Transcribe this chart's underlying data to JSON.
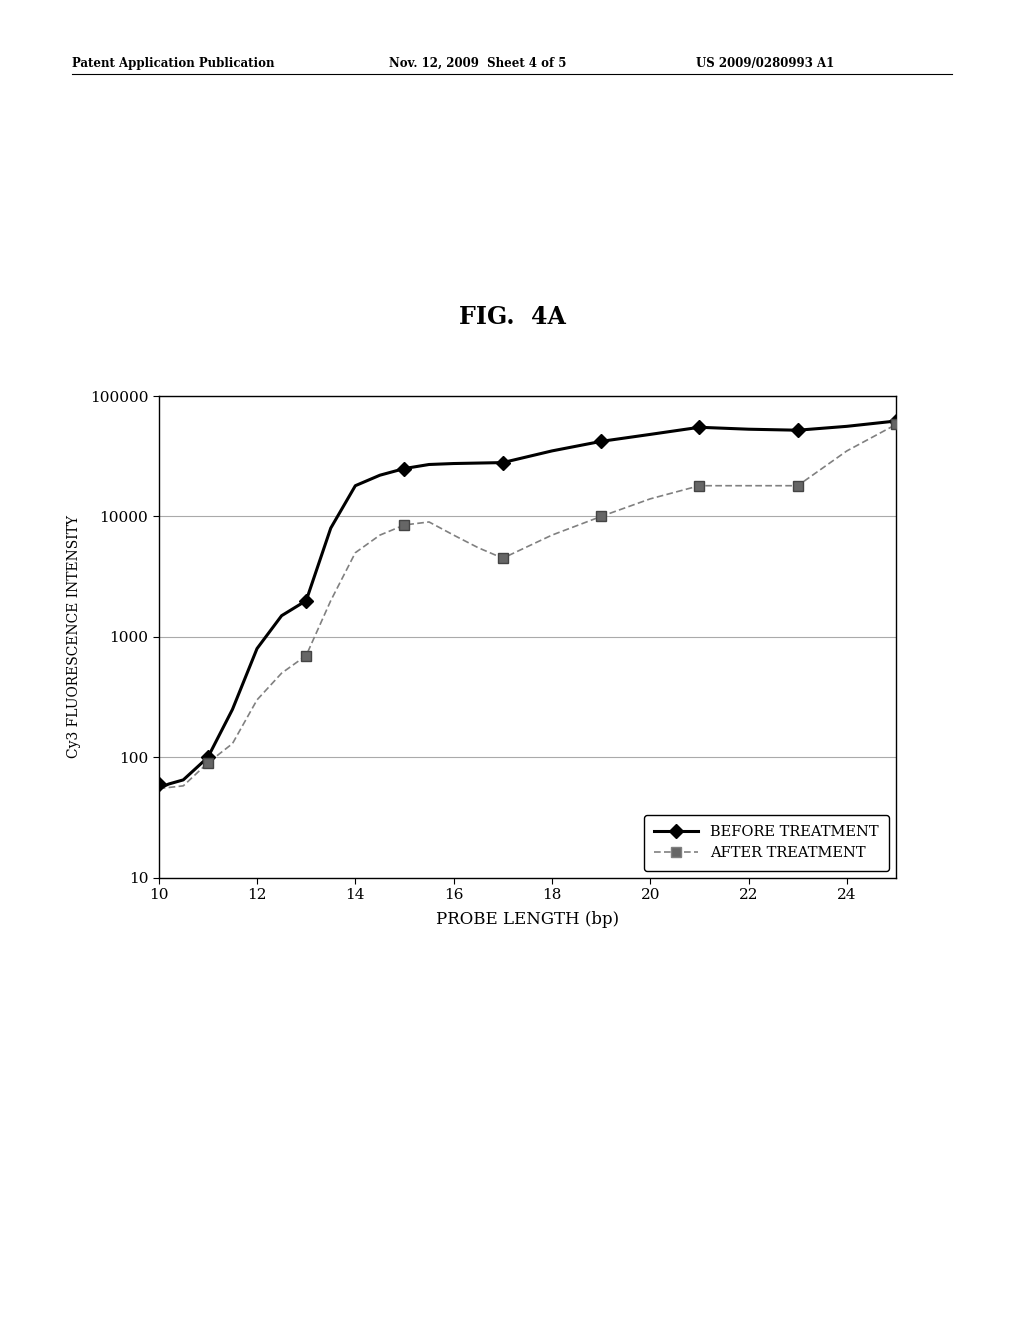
{
  "title": "FIG.  4A",
  "xlabel": "PROBE LENGTH (bp)",
  "ylabel": "Cy3 FLUORESCENCE INTENSITY",
  "header_left": "Patent Application Publication",
  "header_center": "Nov. 12, 2009  Sheet 4 of 5",
  "header_right": "US 2009/0280993 A1",
  "before_x": [
    10,
    11,
    13,
    15,
    17,
    19,
    21,
    23,
    25
  ],
  "before_y": [
    60,
    100,
    2000,
    25000,
    28000,
    42000,
    55000,
    52000,
    62000
  ],
  "after_x": [
    11,
    13,
    15,
    17,
    19,
    21,
    23,
    25
  ],
  "after_y": [
    90,
    700,
    8500,
    4500,
    10000,
    18000,
    18000,
    58000
  ],
  "before_curve_x": [
    10,
    10.2,
    10.5,
    11,
    11.5,
    12,
    12.5,
    13,
    13.5,
    14,
    14.5,
    15,
    15.5,
    16,
    17,
    18,
    19,
    20,
    21,
    22,
    23,
    24,
    25
  ],
  "before_curve_y": [
    55,
    60,
    65,
    100,
    250,
    800,
    1500,
    2000,
    8000,
    18000,
    22000,
    25000,
    27000,
    27500,
    28000,
    35000,
    42000,
    48000,
    55000,
    53000,
    52000,
    56000,
    62000
  ],
  "after_curve_x": [
    10,
    10.5,
    11,
    11.5,
    12,
    12.5,
    13,
    13.5,
    14,
    14.5,
    15,
    15.5,
    16,
    16.5,
    17,
    18,
    19,
    20,
    21,
    22,
    23,
    24,
    25
  ],
  "after_curve_y": [
    55,
    58,
    90,
    130,
    300,
    500,
    700,
    2000,
    5000,
    7000,
    8500,
    9000,
    7000,
    5500,
    4500,
    7000,
    10000,
    14000,
    18000,
    18000,
    18000,
    35000,
    58000
  ],
  "xlim": [
    10,
    25
  ],
  "ylim": [
    10,
    100000
  ],
  "bg_color": "#ffffff",
  "line_color": "#000000",
  "after_line_color": "#808080",
  "grid_color": "#aaaaaa"
}
